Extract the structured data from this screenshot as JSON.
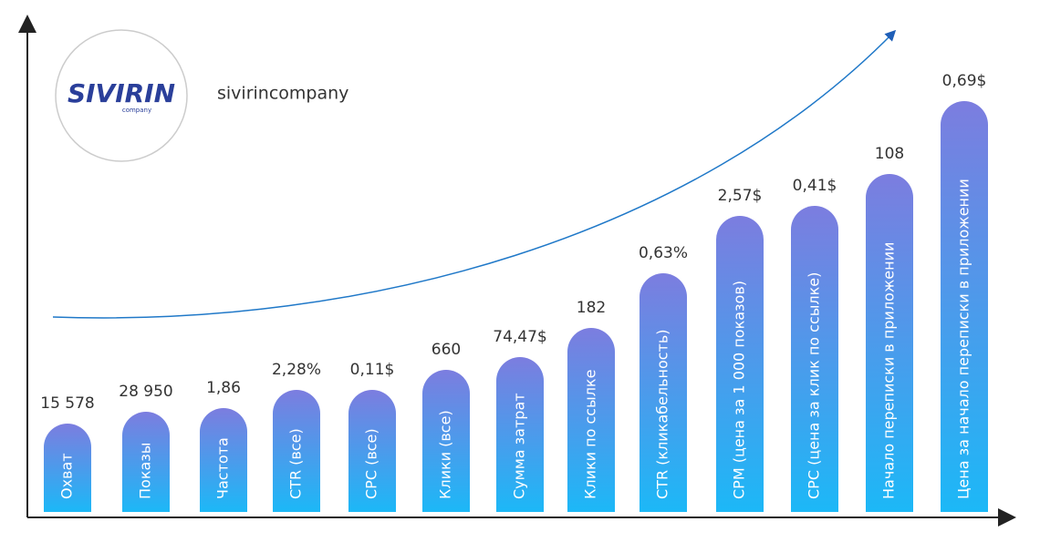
{
  "brand": {
    "logo_text": "SIVIRIN",
    "logo_subtext": "company",
    "name": "sivirincompany"
  },
  "items": [
    {
      "label": "Охват",
      "value": "15 578"
    },
    {
      "label": "Показы",
      "value": "28 950"
    },
    {
      "label": "Частота",
      "value": "1,86"
    },
    {
      "label": "CTR (все)",
      "value": "2,28%"
    },
    {
      "label": "CPC (все)",
      "value": "0,11$"
    },
    {
      "label": "Клики (все)",
      "value": "660"
    },
    {
      "label": "Сумма затрат",
      "value": "74,47$"
    },
    {
      "label": "Клики по ссылке",
      "value": "182"
    },
    {
      "label": "CTR (кликабельность)",
      "value": "0,63%"
    },
    {
      "label": "CPM (цена за 1 000 показов)",
      "value": "2,57$"
    },
    {
      "label": "CPC (цена за клик по ссылке)",
      "value": "0,41$"
    },
    {
      "label": "Начало переписки в приложении",
      "value": "108"
    },
    {
      "label": "Цена за начало переписки в приложении",
      "value": "0,69$"
    }
  ]
}
